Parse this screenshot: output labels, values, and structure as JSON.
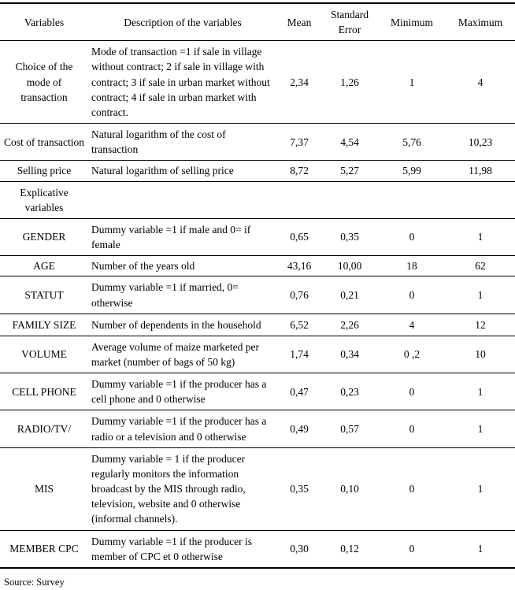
{
  "table": {
    "columns": {
      "variables": "Variables",
      "description": "Description of the variables",
      "mean": "Mean",
      "standard_error": "Standard Error",
      "minimum": "Minimum",
      "maximum": "Maximum"
    },
    "rows": [
      {
        "variable": "Choice of the mode of transaction",
        "description": "Mode of transaction =1 if sale in village without contract; 2 if sale in village with contract; 3 if sale in urban market without contract; 4 if sale in urban market with contract.",
        "mean": "2,34",
        "se": "1,26",
        "min": "1",
        "max": "4"
      },
      {
        "variable": "Cost of transaction",
        "description": "Natural logarithm of the cost of transaction",
        "mean": "7,37",
        "se": "4,54",
        "min": "5,76",
        "max": "10,23"
      },
      {
        "variable": "Selling price",
        "description": "Natural logarithm of selling price",
        "mean": "8,72",
        "se": "5,27",
        "min": "5,99",
        "max": "11,98"
      },
      {
        "variable": "Explicative variables",
        "description": "",
        "mean": "",
        "se": "",
        "min": "",
        "max": ""
      },
      {
        "variable": "GENDER",
        "description": "Dummy variable =1 if male and 0= if female",
        "mean": "0,65",
        "se": "0,35",
        "min": "0",
        "max": "1"
      },
      {
        "variable": "AGE",
        "description": "Number of the years old",
        "mean": "43,16",
        "se": "10,00",
        "min": "18",
        "max": "62"
      },
      {
        "variable": "STATUT",
        "description": "Dummy variable =1 if married, 0= otherwise",
        "mean": "0,76",
        "se": "0,21",
        "min": "0",
        "max": "1"
      },
      {
        "variable": "FAMILY SIZE",
        "description": "Number of dependents in the household",
        "mean": "6,52",
        "se": "2,26",
        "min": "4",
        "max": "12"
      },
      {
        "variable": "VOLUME",
        "description": "Average volume of maize marketed per market (number of bags of 50 kg)",
        "mean": "1,74",
        "se": "0,34",
        "min": "0 ,2",
        "max": "10"
      },
      {
        "variable": "CELL PHONE",
        "description": "Dummy variable =1 if the producer has a cell phone and 0 otherwise",
        "mean": "0,47",
        "se": "0,23",
        "min": "0",
        "max": "1"
      },
      {
        "variable": "RADIO/TV/",
        "description": "Dummy variable =1 if the producer has a radio or a television and 0 otherwise",
        "mean": "0,49",
        "se": "0,57",
        "min": "0",
        "max": "1"
      },
      {
        "variable": "MIS",
        "description": "Dummy variable = 1 if the producer regularly monitors the information broadcast by the MIS through radio, television, website and 0 otherwise (informal channels).",
        "mean": "0,35",
        "se": "0,10",
        "min": "0",
        "max": "1"
      },
      {
        "variable": "MEMBER CPC",
        "description": "Dummy variable =1 if the producer is member of CPC et 0 otherwise",
        "mean": "0,30",
        "se": "0,12",
        "min": "0",
        "max": "1"
      }
    ]
  },
  "footer": {
    "source": "Source: Survey"
  }
}
